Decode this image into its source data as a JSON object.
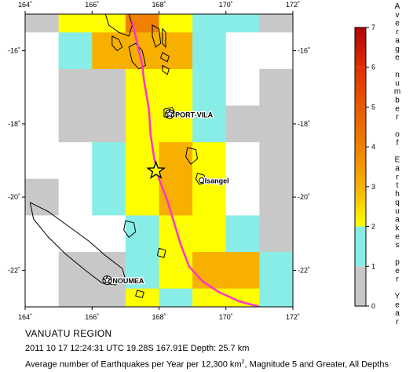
{
  "map": {
    "region_title": "VANUATU REGION",
    "event_line": "2011 10 17 12:24:31 UTC 19.28S 167.91E Depth: 25.7 km",
    "avg_line_prefix": "Average number of Earthquakes per Year per 12,300 km",
    "avg_line_sup": "2",
    "avg_line_suffix": ", Magnitude 5 and Greater, All Depths",
    "lon_ticks": [
      "164˚",
      "166˚",
      "168˚",
      "170˚",
      "172˚"
    ],
    "lat_ticks_left": [
      "-16˚",
      "-18˚",
      "-20˚",
      "-22˚"
    ],
    "lat_ticks_right": [
      "-16˚",
      "-18˚",
      "-20˚",
      "-22˚"
    ],
    "extent": {
      "lon_min": 164,
      "lon_max": 172,
      "lat_min": -23,
      "lat_max": -15
    },
    "cities": [
      {
        "name": "PORT-VILA",
        "lon": 168.32,
        "lat": -17.73
      },
      {
        "name": "Isangel",
        "lon": 169.27,
        "lat": -19.54
      },
      {
        "name": "NOUMEA",
        "lon": 166.45,
        "lat": -22.27
      }
    ],
    "epicenter": {
      "lon": 167.91,
      "lat": -19.28
    },
    "colors": {
      "plate_boundary": "#ff33cc",
      "star_fill": "#ffff00",
      "grid_gray": "#c8c8c8"
    }
  },
  "legend": {
    "title_letters": [
      "A",
      "v",
      "e",
      "r",
      "a",
      "g",
      "e",
      "",
      "n",
      "u",
      "m",
      "b",
      "e",
      "r",
      "",
      "o",
      "f",
      "",
      "E",
      "a",
      "r",
      "t",
      "h",
      "q",
      "u",
      "a",
      "k",
      "e",
      "s",
      "",
      "p",
      "e",
      "r",
      "",
      "Y",
      "e",
      "a",
      "r"
    ],
    "ticks": [
      "0",
      "1",
      "2",
      "3",
      "4",
      "5",
      "6",
      "7"
    ],
    "min": 0,
    "max": 7
  },
  "grid_cells": [
    {
      "lon": 164.5,
      "lat": -15.0,
      "v": 0.5
    },
    {
      "lon": 165.5,
      "lat": -15.0,
      "v": 1.8
    },
    {
      "lon": 166.5,
      "lat": -15.0,
      "v": 1.6
    },
    {
      "lon": 167.5,
      "lat": -15.0,
      "v": 3.0
    },
    {
      "lon": 168.5,
      "lat": -15.0,
      "v": 1.9
    },
    {
      "lon": 169.5,
      "lat": -15.0,
      "v": 1.1
    },
    {
      "lon": 170.5,
      "lat": -15.0,
      "v": 1.2
    },
    {
      "lon": 171.5,
      "lat": -15.0,
      "v": 0.8
    },
    {
      "lon": 164.5,
      "lat": -16.0,
      "v": 0.0
    },
    {
      "lon": 165.5,
      "lat": -16.0,
      "v": 1.2
    },
    {
      "lon": 166.5,
      "lat": -16.0,
      "v": 2.5
    },
    {
      "lon": 167.5,
      "lat": -16.0,
      "v": 2.5
    },
    {
      "lon": 168.5,
      "lat": -16.0,
      "v": 2.0
    },
    {
      "lon": 169.5,
      "lat": -16.0,
      "v": 1.2
    },
    {
      "lon": 170.5,
      "lat": -16.0,
      "v": 0.0
    },
    {
      "lon": 171.5,
      "lat": -16.0,
      "v": 0.0
    },
    {
      "lon": 164.5,
      "lat": -17.0,
      "v": 0.0
    },
    {
      "lon": 165.5,
      "lat": -17.0,
      "v": 0.5
    },
    {
      "lon": 166.5,
      "lat": -17.0,
      "v": 0.8
    },
    {
      "lon": 167.5,
      "lat": -17.0,
      "v": 1.8
    },
    {
      "lon": 168.5,
      "lat": -17.0,
      "v": 1.9
    },
    {
      "lon": 169.5,
      "lat": -17.0,
      "v": 1.2
    },
    {
      "lon": 170.5,
      "lat": -17.0,
      "v": 0.0
    },
    {
      "lon": 171.5,
      "lat": -17.0,
      "v": 0.5
    },
    {
      "lon": 164.5,
      "lat": -18.0,
      "v": 0.0
    },
    {
      "lon": 165.5,
      "lat": -18.0,
      "v": 0.5
    },
    {
      "lon": 166.5,
      "lat": -18.0,
      "v": 0.5
    },
    {
      "lon": 167.5,
      "lat": -18.0,
      "v": 1.8
    },
    {
      "lon": 168.5,
      "lat": -18.0,
      "v": 1.7
    },
    {
      "lon": 169.5,
      "lat": -18.0,
      "v": 1.2
    },
    {
      "lon": 170.5,
      "lat": -18.0,
      "v": 0.5
    },
    {
      "lon": 171.5,
      "lat": -18.0,
      "v": 0.5
    },
    {
      "lon": 164.5,
      "lat": -19.0,
      "v": 0.0
    },
    {
      "lon": 165.5,
      "lat": -19.0,
      "v": 0.0
    },
    {
      "lon": 166.5,
      "lat": -19.0,
      "v": 1.2
    },
    {
      "lon": 167.5,
      "lat": -19.0,
      "v": 1.8
    },
    {
      "lon": 168.5,
      "lat": -19.0,
      "v": 2.3
    },
    {
      "lon": 169.5,
      "lat": -19.0,
      "v": 1.8
    },
    {
      "lon": 170.5,
      "lat": -19.0,
      "v": 0.0
    },
    {
      "lon": 171.5,
      "lat": -19.0,
      "v": 0.5
    },
    {
      "lon": 164.5,
      "lat": -20.0,
      "v": 0.5
    },
    {
      "lon": 165.5,
      "lat": -20.0,
      "v": 0.0
    },
    {
      "lon": 166.5,
      "lat": -20.0,
      "v": 1.1
    },
    {
      "lon": 167.5,
      "lat": -20.0,
      "v": 1.7
    },
    {
      "lon": 168.5,
      "lat": -20.0,
      "v": 2.3
    },
    {
      "lon": 169.5,
      "lat": -20.0,
      "v": 1.8
    },
    {
      "lon": 170.5,
      "lat": -20.0,
      "v": 0.0
    },
    {
      "lon": 171.5,
      "lat": -20.0,
      "v": 0.5
    },
    {
      "lon": 164.5,
      "lat": -21.0,
      "v": 0.0
    },
    {
      "lon": 165.5,
      "lat": -21.0,
      "v": 0.0
    },
    {
      "lon": 166.5,
      "lat": -21.0,
      "v": 0.0
    },
    {
      "lon": 167.5,
      "lat": -21.0,
      "v": 1.2
    },
    {
      "lon": 168.5,
      "lat": -21.0,
      "v": 1.7
    },
    {
      "lon": 169.5,
      "lat": -21.0,
      "v": 1.8
    },
    {
      "lon": 170.5,
      "lat": -21.0,
      "v": 1.2
    },
    {
      "lon": 171.5,
      "lat": -21.0,
      "v": 0.8
    },
    {
      "lon": 164.5,
      "lat": -22.0,
      "v": 0.0
    },
    {
      "lon": 165.5,
      "lat": -22.0,
      "v": 0.5
    },
    {
      "lon": 166.5,
      "lat": -22.0,
      "v": 0.5
    },
    {
      "lon": 167.5,
      "lat": -22.0,
      "v": 1.2
    },
    {
      "lon": 168.5,
      "lat": -22.0,
      "v": 1.8
    },
    {
      "lon": 169.5,
      "lat": -22.0,
      "v": 2.3
    },
    {
      "lon": 170.5,
      "lat": -22.0,
      "v": 2.3
    },
    {
      "lon": 171.5,
      "lat": -22.0,
      "v": 1.2
    },
    {
      "lon": 164.5,
      "lat": -23.0,
      "v": 0.0
    },
    {
      "lon": 165.5,
      "lat": -23.0,
      "v": 0.5
    },
    {
      "lon": 166.5,
      "lat": -23.0,
      "v": 0.5
    },
    {
      "lon": 167.5,
      "lat": -23.0,
      "v": 1.8
    },
    {
      "lon": 168.5,
      "lat": -23.0,
      "v": 1.2
    },
    {
      "lon": 169.5,
      "lat": -23.0,
      "v": 1.8
    },
    {
      "lon": 170.5,
      "lat": -23.0,
      "v": 1.8
    },
    {
      "lon": 171.5,
      "lat": -23.0,
      "v": 1.2
    }
  ],
  "plate_boundary": [
    [
      167.2,
      -15.2
    ],
    [
      167.35,
      -15.8
    ],
    [
      167.5,
      -16.4
    ],
    [
      167.55,
      -16.8
    ],
    [
      167.7,
      -17.6
    ],
    [
      167.75,
      -18.3
    ],
    [
      167.85,
      -18.9
    ],
    [
      168.0,
      -19.5
    ],
    [
      168.25,
      -20.1
    ],
    [
      168.45,
      -20.7
    ],
    [
      168.65,
      -21.3
    ],
    [
      168.9,
      -21.9
    ],
    [
      169.3,
      -22.3
    ],
    [
      169.8,
      -22.6
    ],
    [
      170.4,
      -22.85
    ],
    [
      171.0,
      -23.0
    ]
  ],
  "coastlines": [
    [
      [
        166.4,
        -15.0
      ],
      [
        166.5,
        -15.3
      ],
      [
        166.8,
        -15.5
      ],
      [
        167.1,
        -15.6
      ],
      [
        167.2,
        -15.3
      ],
      [
        167.1,
        -15.0
      ]
    ],
    [
      [
        166.6,
        -15.6
      ],
      [
        166.8,
        -15.7
      ],
      [
        166.9,
        -15.9
      ],
      [
        166.75,
        -16.0
      ],
      [
        166.6,
        -15.85
      ]
    ],
    [
      [
        167.1,
        -15.9
      ],
      [
        167.3,
        -15.8
      ],
      [
        167.5,
        -16.0
      ],
      [
        167.6,
        -16.4
      ],
      [
        167.4,
        -16.5
      ],
      [
        167.2,
        -16.3
      ]
    ],
    [
      [
        167.8,
        -15.3
      ],
      [
        168.0,
        -15.4
      ],
      [
        168.05,
        -15.8
      ],
      [
        167.9,
        -15.9
      ],
      [
        167.8,
        -15.6
      ]
    ],
    [
      [
        168.1,
        -15.4
      ],
      [
        168.2,
        -15.5
      ],
      [
        168.2,
        -15.9
      ],
      [
        168.1,
        -15.8
      ]
    ],
    [
      [
        168.1,
        -16.05
      ],
      [
        168.3,
        -16.15
      ],
      [
        168.25,
        -16.3
      ],
      [
        168.05,
        -16.2
      ]
    ],
    [
      [
        168.1,
        -16.4
      ],
      [
        168.3,
        -16.5
      ],
      [
        168.25,
        -16.65
      ],
      [
        168.1,
        -16.55
      ]
    ],
    [
      [
        168.15,
        -17.6
      ],
      [
        168.4,
        -17.55
      ],
      [
        168.5,
        -17.75
      ],
      [
        168.35,
        -17.85
      ],
      [
        168.15,
        -17.8
      ]
    ],
    [
      [
        168.85,
        -18.65
      ],
      [
        169.1,
        -18.7
      ],
      [
        169.15,
        -18.95
      ],
      [
        168.95,
        -19.1
      ],
      [
        168.8,
        -18.9
      ]
    ],
    [
      [
        169.15,
        -19.35
      ],
      [
        169.35,
        -19.4
      ],
      [
        169.4,
        -19.6
      ],
      [
        169.2,
        -19.65
      ],
      [
        169.1,
        -19.5
      ]
    ],
    [
      [
        164.15,
        -20.15
      ],
      [
        164.7,
        -20.4
      ],
      [
        165.3,
        -20.8
      ],
      [
        165.9,
        -21.2
      ],
      [
        166.4,
        -21.6
      ],
      [
        166.9,
        -21.95
      ],
      [
        167.0,
        -22.25
      ],
      [
        166.7,
        -22.4
      ],
      [
        166.3,
        -22.35
      ],
      [
        165.8,
        -22.0
      ],
      [
        165.2,
        -21.55
      ],
      [
        164.7,
        -21.1
      ],
      [
        164.25,
        -20.6
      ]
    ],
    [
      [
        167.0,
        -20.65
      ],
      [
        167.25,
        -20.7
      ],
      [
        167.3,
        -20.95
      ],
      [
        167.1,
        -21.1
      ],
      [
        166.95,
        -20.9
      ]
    ],
    [
      [
        168.0,
        -21.4
      ],
      [
        168.2,
        -21.45
      ],
      [
        168.15,
        -21.65
      ],
      [
        167.95,
        -21.6
      ]
    ],
    [
      [
        167.35,
        -22.55
      ],
      [
        167.55,
        -22.6
      ],
      [
        167.5,
        -22.75
      ],
      [
        167.3,
        -22.7
      ]
    ]
  ]
}
